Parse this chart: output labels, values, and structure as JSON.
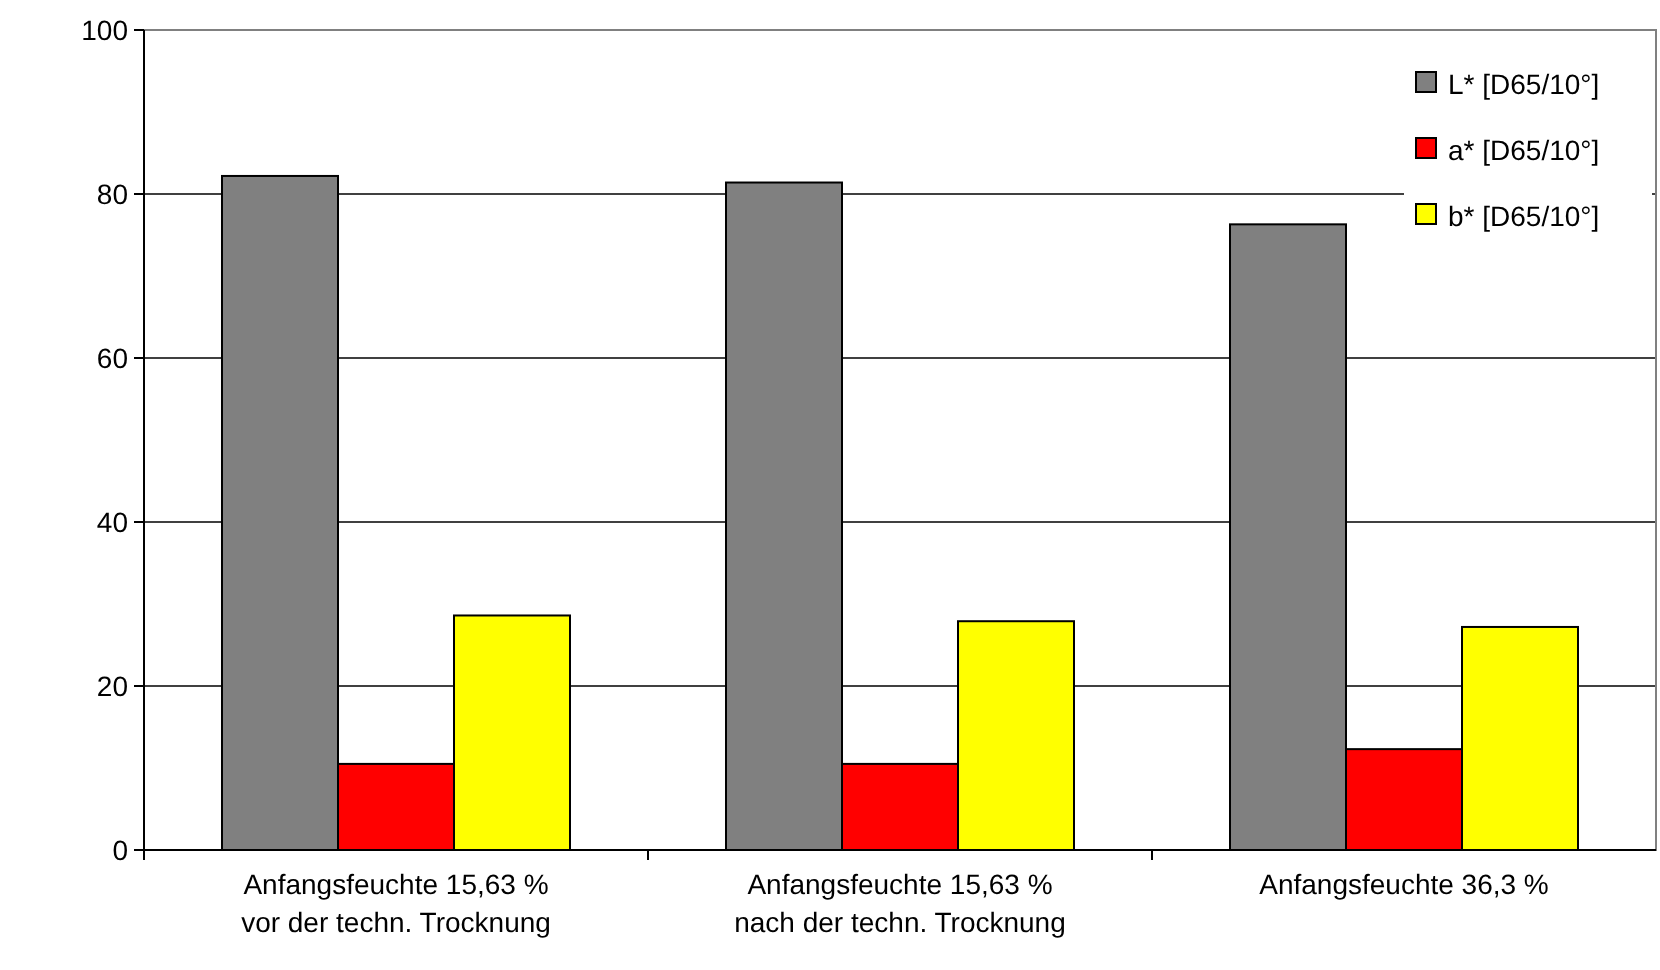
{
  "chart_data": {
    "type": "bar",
    "categories": [
      "Anfangsfeuchte 15,63 %\nvor der techn. Trocknung",
      "Anfangsfeuchte 15,63 %\nnach der techn. Trocknung",
      "Anfangsfeuchte 36,3 %"
    ],
    "series": [
      {
        "name": "L* [D65/10°]",
        "color": "#808080",
        "values": [
          82.2,
          81.4,
          76.3
        ]
      },
      {
        "name": "a* [D65/10°]",
        "color": "#ff0000",
        "values": [
          10.5,
          10.5,
          12.3
        ]
      },
      {
        "name": "b* [D65/10°]",
        "color": "#ffff00",
        "values": [
          28.6,
          27.9,
          27.2
        ]
      }
    ],
    "ylim": [
      0,
      100
    ],
    "yticks": [
      0,
      20,
      40,
      60,
      80,
      100
    ],
    "grid": "y",
    "legend": "top right"
  }
}
